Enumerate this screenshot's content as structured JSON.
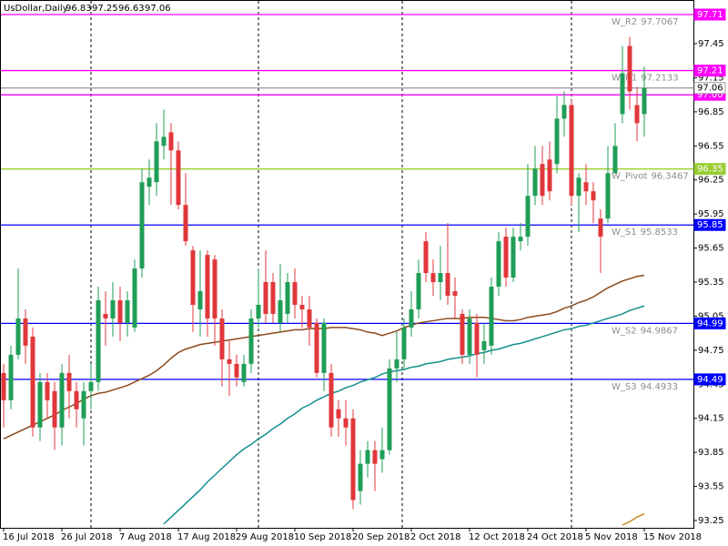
{
  "chart_data": {
    "type": "candlestick",
    "title": "UsDollar,Daily",
    "categories": [
      "16 Jul 2018",
      null,
      null,
      null,
      null,
      null,
      null,
      null,
      "26 Jul 2018",
      null,
      null,
      null,
      null,
      null,
      null,
      null,
      "7 Aug 2018",
      null,
      null,
      null,
      null,
      null,
      null,
      null,
      "17 Aug 2018",
      null,
      null,
      null,
      null,
      null,
      null,
      null,
      "29 Aug 2018",
      null,
      null,
      null,
      null,
      null,
      null,
      null,
      "10 Sep 2018",
      null,
      null,
      null,
      null,
      null,
      null,
      null,
      "20 Sep 2018",
      null,
      null,
      null,
      null,
      null,
      null,
      null,
      "2 Oct 2018",
      null,
      null,
      null,
      null,
      null,
      null,
      null,
      "12 Oct 2018",
      null,
      null,
      null,
      null,
      null,
      null,
      null,
      "24 Oct 2018",
      null,
      null,
      null,
      null,
      null,
      null,
      null,
      "5 Nov 2018",
      null,
      null,
      null,
      null,
      null,
      null,
      null,
      "15 Nov 2018"
    ],
    "open": [
      94.55,
      94.31,
      94.71,
      95.03,
      94.87,
      94.07,
      94.47,
      94.39,
      94.07,
      94.55,
      94.39,
      94.15,
      94.39,
      94.47,
      95.07,
      95.03,
      95.19,
      94.99,
      94.95,
      95.47,
      96.19,
      96.23,
      96.55,
      96.67,
      96.51,
      96.03,
      95.63,
      95.11,
      95.59,
      95.55,
      95.03,
      94.67,
      94.63,
      94.47,
      94.63,
      95.03,
      95.35,
      95.35,
      94.99,
      95.07,
      95.35,
      95.15,
      95.11,
      94.99,
      94.55,
      94.55,
      94.23,
      94.15,
      94.15,
      93.51,
      93.75,
      93.87,
      93.79,
      93.87,
      94.59,
      94.67,
      94.95,
      95.11,
      95.71,
      95.43,
      95.35,
      95.43,
      95.27,
      95.07,
      94.71,
      94.99,
      94.75,
      94.79,
      95.31,
      95.75,
      95.39,
      95.71,
      95.75,
      96.11,
      96.39,
      96.43,
      96.39,
      96.79,
      96.91,
      96.11,
      96.23,
      96.15,
      95.91,
      95.91,
      96.31,
      96.83,
      97.43,
      96.91,
      96.83
    ],
    "high": [
      94.63,
      94.79,
      95.47,
      95.11,
      94.95,
      94.55,
      94.55,
      94.47,
      94.63,
      94.71,
      94.47,
      94.47,
      94.63,
      95.31,
      95.27,
      95.35,
      95.31,
      95.27,
      95.55,
      96.35,
      96.43,
      96.75,
      96.87,
      96.75,
      96.59,
      96.31,
      95.67,
      95.63,
      95.63,
      95.59,
      95.11,
      94.83,
      94.71,
      94.71,
      95.11,
      95.47,
      95.63,
      95.43,
      95.51,
      95.43,
      95.47,
      95.23,
      95.23,
      95.03,
      95.03,
      94.63,
      94.31,
      94.31,
      94.23,
      93.87,
      93.95,
      93.95,
      94.07,
      94.67,
      94.91,
      95.03,
      95.27,
      95.55,
      95.79,
      95.55,
      95.67,
      95.87,
      95.39,
      95.11,
      95.11,
      95.07,
      94.99,
      95.39,
      95.79,
      95.83,
      95.83,
      95.87,
      96.39,
      96.55,
      96.55,
      96.59,
      96.99,
      97.03,
      96.95,
      96.31,
      96.39,
      96.23,
      95.99,
      96.55,
      96.75,
      97.43,
      97.51,
      97.07,
      97.25
    ],
    "low": [
      94.07,
      94.23,
      94.67,
      94.63,
      93.99,
      93.95,
      94.15,
      93.87,
      93.91,
      94.15,
      94.07,
      93.91,
      94.23,
      94.39,
      94.79,
      94.87,
      94.83,
      94.87,
      94.91,
      95.39,
      96.03,
      96.11,
      96.43,
      96.03,
      95.99,
      95.67,
      94.91,
      94.87,
      94.87,
      94.79,
      94.43,
      94.35,
      94.43,
      94.43,
      94.55,
      94.95,
      94.99,
      94.99,
      94.91,
      94.99,
      95.03,
      94.95,
      94.79,
      94.51,
      94.39,
      93.99,
      93.99,
      93.91,
      93.35,
      93.39,
      93.63,
      93.51,
      93.67,
      93.83,
      94.47,
      94.59,
      94.87,
      95.03,
      95.35,
      95.23,
      95.19,
      95.15,
      95.03,
      94.63,
      94.63,
      94.51,
      94.63,
      94.71,
      95.23,
      95.31,
      95.35,
      95.63,
      95.67,
      96.03,
      96.03,
      96.07,
      96.31,
      96.63,
      96.03,
      95.79,
      96.03,
      95.87,
      95.43,
      95.87,
      96.31,
      96.75,
      96.87,
      96.59,
      96.63
    ],
    "close": [
      94.31,
      94.71,
      95.03,
      94.79,
      94.07,
      94.47,
      94.31,
      94.07,
      94.55,
      94.39,
      94.23,
      94.39,
      94.47,
      95.19,
      95.03,
      95.19,
      94.99,
      95.19,
      95.47,
      96.23,
      96.27,
      96.59,
      96.63,
      96.51,
      96.03,
      95.71,
      95.15,
      95.27,
      95.03,
      95.03,
      94.67,
      94.63,
      94.51,
      94.63,
      95.03,
      95.15,
      95.07,
      95.07,
      95.19,
      95.35,
      95.15,
      95.11,
      94.95,
      94.55,
      94.99,
      94.07,
      94.15,
      94.07,
      93.43,
      93.75,
      93.87,
      93.75,
      93.87,
      94.59,
      94.67,
      94.95,
      95.11,
      95.43,
      95.43,
      95.35,
      95.43,
      95.23,
      95.23,
      94.71,
      95.03,
      94.71,
      94.83,
      95.31,
      95.71,
      95.39,
      95.75,
      95.75,
      96.11,
      96.35,
      96.11,
      96.15,
      96.79,
      96.91,
      96.11,
      96.27,
      96.15,
      96.07,
      95.75,
      96.31,
      96.55,
      97.19,
      97.03,
      96.75,
      97.06
    ],
    "up_color": "#1f9e57",
    "down_color": "#e0373b",
    "lines": [
      {
        "color": "#8b4a1c",
        "values": [
          93.97,
          94.0,
          94.03,
          94.06,
          94.09,
          94.12,
          94.15,
          94.18,
          94.22,
          94.25,
          94.28,
          94.32,
          94.35,
          94.37,
          94.38,
          94.4,
          94.42,
          94.44,
          94.47,
          94.5,
          94.53,
          94.57,
          94.62,
          94.68,
          94.73,
          94.76,
          94.78,
          94.8,
          94.81,
          94.82,
          94.83,
          94.84,
          94.85,
          94.86,
          94.87,
          94.88,
          94.89,
          94.9,
          94.91,
          94.92,
          94.93,
          94.93,
          94.94,
          94.94,
          94.94,
          94.95,
          94.95,
          94.95,
          94.94,
          94.93,
          94.91,
          94.9,
          94.88,
          94.9,
          94.92,
          94.95,
          94.97,
          94.99,
          95.0,
          95.01,
          95.02,
          95.03,
          95.03,
          95.03,
          95.04,
          95.04,
          95.04,
          95.03,
          95.02,
          95.01,
          95.01,
          95.02,
          95.04,
          95.05,
          95.06,
          95.07,
          95.09,
          95.12,
          95.14,
          95.17,
          95.19,
          95.22,
          95.26,
          95.3,
          95.33,
          95.36,
          95.38,
          95.4,
          95.41
        ]
      },
      {
        "color": "#13908e",
        "values": [
          null,
          null,
          null,
          null,
          null,
          null,
          null,
          null,
          null,
          null,
          null,
          null,
          null,
          null,
          null,
          null,
          null,
          null,
          null,
          null,
          null,
          null,
          93.22,
          93.28,
          93.34,
          93.4,
          93.46,
          93.52,
          93.59,
          93.65,
          93.71,
          93.77,
          93.83,
          93.88,
          93.92,
          93.97,
          94.01,
          94.06,
          94.1,
          94.15,
          94.19,
          94.24,
          94.27,
          94.31,
          94.34,
          94.37,
          94.39,
          94.42,
          94.44,
          94.47,
          94.49,
          94.51,
          94.54,
          94.56,
          94.57,
          94.58,
          94.6,
          94.61,
          94.63,
          94.64,
          94.65,
          94.67,
          94.68,
          94.69,
          94.7,
          94.72,
          94.73,
          94.75,
          94.76,
          94.78,
          94.8,
          94.81,
          94.83,
          94.85,
          94.87,
          94.89,
          94.91,
          94.93,
          94.94,
          94.96,
          94.97,
          94.99,
          95.01,
          95.03,
          95.05,
          95.07,
          95.1,
          95.12,
          95.14
        ]
      },
      {
        "color": "#c58a22",
        "values": [
          null,
          null,
          null,
          null,
          null,
          null,
          null,
          null,
          null,
          null,
          null,
          null,
          null,
          null,
          null,
          null,
          null,
          null,
          null,
          null,
          null,
          null,
          null,
          null,
          null,
          null,
          null,
          null,
          null,
          null,
          null,
          null,
          null,
          null,
          null,
          null,
          null,
          null,
          null,
          null,
          null,
          null,
          null,
          null,
          null,
          null,
          null,
          null,
          null,
          null,
          null,
          null,
          null,
          null,
          null,
          null,
          null,
          null,
          null,
          null,
          null,
          null,
          null,
          null,
          null,
          null,
          null,
          null,
          null,
          null,
          null,
          null,
          null,
          null,
          null,
          null,
          null,
          null,
          null,
          null,
          null,
          null,
          null,
          null,
          null,
          93.21,
          93.24,
          93.28,
          93.31
        ]
      }
    ],
    "levels": [
      {
        "name": "W_R2",
        "value": 97.7067,
        "label": "97.71",
        "color": "#ff00ff",
        "text_color": "#ffffff"
      },
      {
        "name": "W_R1",
        "value": 97.2133,
        "label": "97.21",
        "color": "#ff00ff",
        "text_color": "#ffffff"
      },
      {
        "value": 97.0,
        "label": "97.00",
        "color": "#ff00ff",
        "text_color": "#ffffff"
      },
      {
        "value": 97.06,
        "label": "97.06",
        "color": "#a0a0a0",
        "text_color": "#000000"
      },
      {
        "name": "W_Pivot",
        "value": 96.3467,
        "label": "96.35",
        "color": "#9acd32",
        "text_color": "#ffffff"
      },
      {
        "name": "W_S1",
        "value": 95.8533,
        "label": "95.85",
        "color": "#0000ff",
        "text_color": "#ffffff"
      },
      {
        "name": "W_S2",
        "value": 94.9867,
        "label": "94.99",
        "color": "#0000ff",
        "text_color": "#ffffff"
      },
      {
        "name": "W_S3",
        "value": 94.4933,
        "label": "94.49",
        "color": "#0000ff",
        "text_color": "#ffffff"
      }
    ],
    "ylim": [
      93.186,
      97.835
    ],
    "yticks": [
      93.25,
      93.55,
      93.85,
      94.15,
      94.45,
      94.75,
      95.05,
      95.35,
      95.65,
      95.95,
      96.25,
      96.55,
      96.85,
      97.15,
      97.45
    ]
  }
}
